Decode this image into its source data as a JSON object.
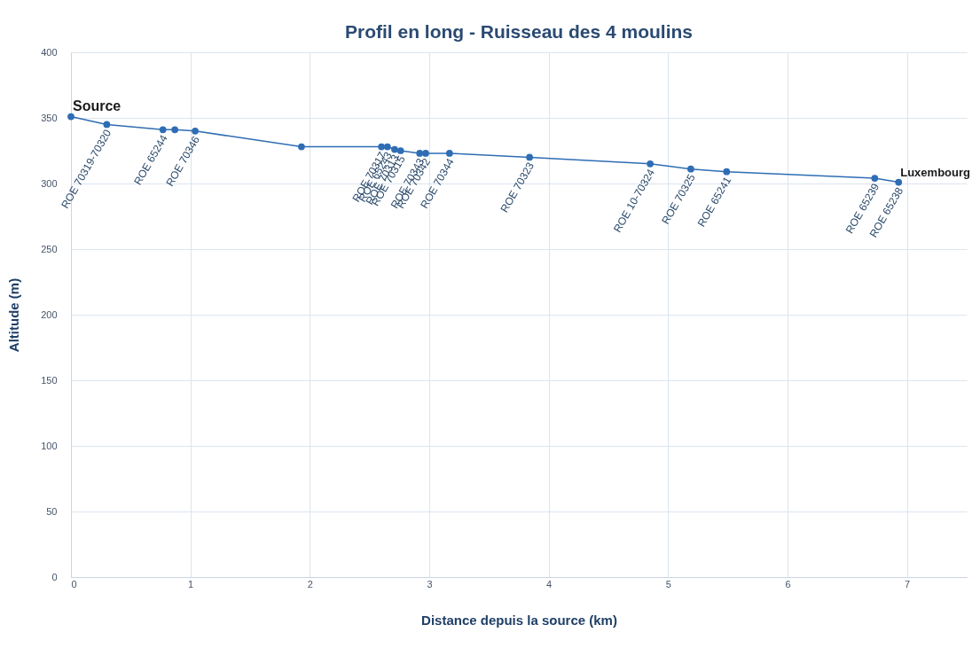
{
  "chart_data": {
    "type": "line",
    "title": "Profil en long - Ruisseau des 4 moulins",
    "xlabel": "Distance depuis la source (km)",
    "ylabel": "Altitude (m)",
    "x": [
      0,
      0.3,
      0.77,
      0.87,
      1.04,
      1.93,
      2.6,
      2.65,
      2.71,
      2.76,
      2.92,
      2.97,
      3.17,
      3.84,
      4.85,
      5.19,
      5.49,
      6.73,
      6.93
    ],
    "values": [
      351,
      345,
      341,
      341,
      340,
      328,
      328,
      328,
      326,
      325,
      323,
      323,
      323,
      320,
      315,
      311,
      309,
      304,
      301
    ],
    "value_labels": [
      null,
      "ROE 70319-70320",
      "ROE 65244",
      null,
      "ROE 70346",
      null,
      "ROE 70317",
      "ROE 65243",
      "ROE 70313",
      "ROE 70315",
      "ROE 70343",
      "ROE 70342",
      "ROE 70344",
      "ROE 70323",
      "ROE 10-70324",
      "ROE 70325",
      "ROE 65241",
      "ROE 65239",
      "ROE 65238"
    ],
    "color": "#2e6db4",
    "marker": "circle",
    "grid": true,
    "xlim": [
      0,
      7.5
    ],
    "xticks": [
      0,
      1,
      2,
      3,
      4,
      5,
      6,
      7
    ],
    "ylim": [
      0,
      400
    ],
    "yticks": [
      0,
      50,
      100,
      150,
      200,
      250,
      300,
      350,
      400
    ],
    "annotations": [
      {
        "text": "Source",
        "x": 0,
        "y": 351
      },
      {
        "text": "Luxembourg",
        "x": 6.93,
        "y": 301
      }
    ]
  }
}
